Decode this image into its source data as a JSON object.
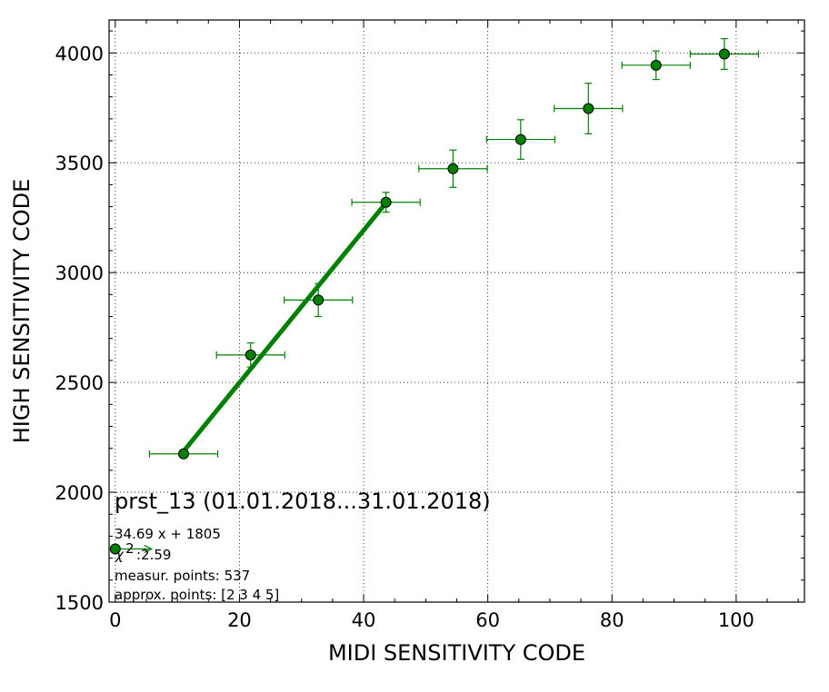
{
  "chart_data": {
    "type": "scatter",
    "xlabel": "MIDI SENSITIVITY CODE",
    "ylabel": "HIGH SENSITIVITY CODE",
    "xlim": [
      -1,
      111
    ],
    "ylim": [
      1500,
      4150
    ],
    "x_ticks": [
      0,
      20,
      40,
      60,
      80,
      100
    ],
    "y_ticks": [
      1500,
      2000,
      2500,
      3000,
      3500,
      4000
    ],
    "x_tick_labels": [
      "0",
      "20",
      "40",
      "60",
      "80",
      "100"
    ],
    "y_tick_labels": [
      "1500",
      "2000",
      "2500",
      "3000",
      "3500",
      "4000"
    ],
    "grid": true,
    "colors": {
      "series": "#008000",
      "marker_edge": "#000000"
    },
    "points": [
      {
        "x": 11.0,
        "y": 2175,
        "xerr": 5.5,
        "yerr": 15
      },
      {
        "x": 21.8,
        "y": 2625,
        "xerr": 5.5,
        "yerr": 55
      },
      {
        "x": 32.7,
        "y": 2875,
        "xerr": 5.5,
        "yerr": 75
      },
      {
        "x": 43.6,
        "y": 3320,
        "xerr": 5.5,
        "yerr": 45
      },
      {
        "x": 54.4,
        "y": 3473,
        "xerr": 5.5,
        "yerr": 85
      },
      {
        "x": 65.3,
        "y": 3606,
        "xerr": 5.5,
        "yerr": 90
      },
      {
        "x": 76.2,
        "y": 3747,
        "xerr": 5.5,
        "yerr": 115
      },
      {
        "x": 87.1,
        "y": 3944,
        "xerr": 5.5,
        "yerr": 65
      },
      {
        "x": 98.1,
        "y": 3995,
        "xerr": 5.5,
        "yerr": 70
      }
    ],
    "fit": {
      "slope": 34.69,
      "intercept": 1805,
      "x_range": [
        11.0,
        43.6
      ]
    },
    "legend_marker": {
      "x": 0,
      "y": 1742
    },
    "annotations": {
      "title": "prst_13 (01.01.2018...31.01.2018)",
      "fit_equation": "34.69 x + 1805",
      "chi2_symbol": "χ",
      "chi2_exp": "2",
      "chi2_value": ":2.59",
      "measur_points": "measur. points: 537",
      "approx_points": "approx. points: [2 3 4 5]"
    }
  }
}
